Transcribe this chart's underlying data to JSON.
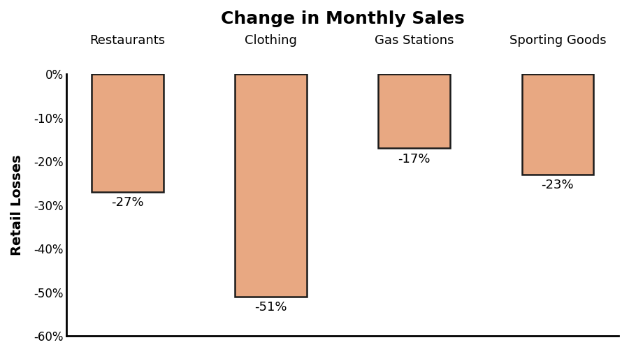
{
  "title": "Change in Monthly Sales",
  "ylabel": "Retail Losses",
  "categories": [
    "Restaurants",
    "Clothing",
    "Gas Stations",
    "Sporting Goods"
  ],
  "values": [
    -27,
    -51,
    -17,
    -23
  ],
  "labels": [
    "-27%",
    "-51%",
    "-17%",
    "-23%"
  ],
  "bar_color": "#E8A882",
  "bar_edge_color": "#1a1a1a",
  "ylim": [
    -60,
    0
  ],
  "yticks": [
    0,
    -10,
    -20,
    -30,
    -40,
    -50,
    -60
  ],
  "ytick_labels": [
    "0%",
    "-10%",
    "-20%",
    "-30%",
    "-40%",
    "-50%",
    "-60%"
  ],
  "title_fontsize": 18,
  "ylabel_fontsize": 14,
  "tick_fontsize": 12,
  "label_fontsize": 13,
  "cat_fontsize": 13,
  "background_color": "#ffffff"
}
